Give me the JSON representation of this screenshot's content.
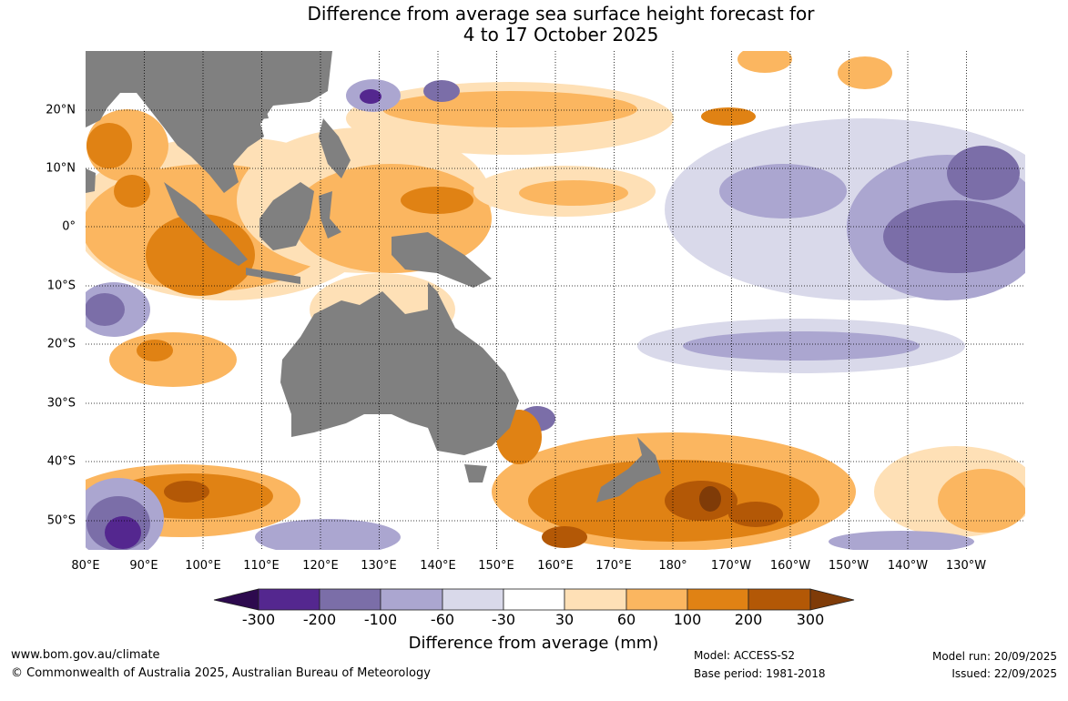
{
  "title": {
    "line1": "Difference from average sea surface height forecast for",
    "line2": "4 to 17 October 2025"
  },
  "map": {
    "lon_labels": [
      "80°E",
      "90°E",
      "100°E",
      "110°E",
      "120°E",
      "130°E",
      "140°E",
      "150°E",
      "160°E",
      "170°E",
      "180°",
      "170°W",
      "160°W",
      "150°W",
      "140°W",
      "130°W"
    ],
    "lat_labels": [
      "20°N",
      "10°N",
      "0°",
      "10°S",
      "20°S",
      "30°S",
      "40°S",
      "50°S"
    ],
    "land_color": "#808080"
  },
  "colorbar": {
    "title": "Difference from average (mm)",
    "ticks": [
      "-300",
      "-200",
      "-100",
      "-60",
      "-30",
      "30",
      "60",
      "100",
      "200",
      "300"
    ],
    "colors": [
      "#54278f",
      "#7b6ea8",
      "#aba6d0",
      "#d9d9ea",
      "#ffffff",
      "#fee0b6",
      "#fbb660",
      "#e08214",
      "#b35806"
    ],
    "under_color": "#2d0a4e",
    "over_color": "#7f3b08"
  },
  "footer": {
    "website": "www.bom.gov.au/climate",
    "copyright": "© Commonwealth of Australia 2025, Australian Bureau of Meteorology",
    "model": "Model: ACCESS-S2",
    "base_period": "Base period: 1981-2018",
    "model_run": "Model run: 20/09/2025",
    "issued": "Issued: 22/09/2025"
  }
}
